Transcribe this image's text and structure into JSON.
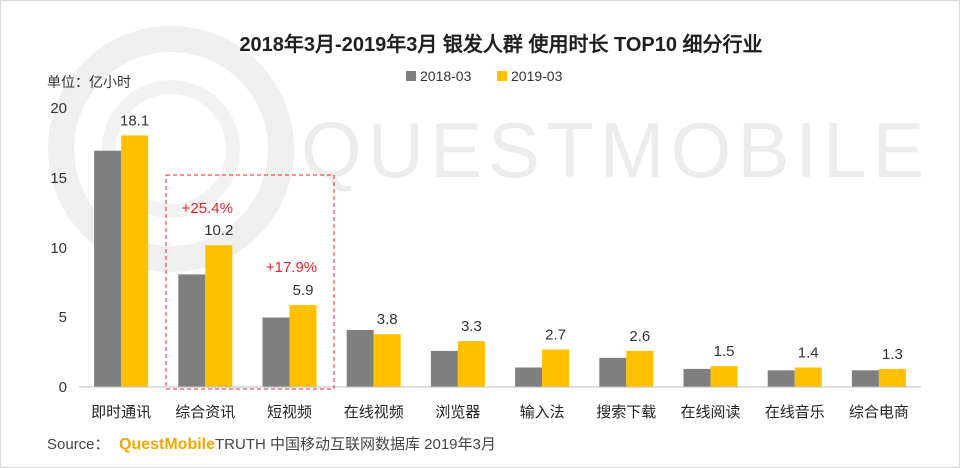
{
  "colors": {
    "series_2018": "#7f7f7f",
    "series_2019": "#ffc000",
    "highlight_box": "#e0262f",
    "growth_text": "#e0262f",
    "axis": "#bfbfbf",
    "brand": "#f2a900",
    "watermark": "#ececec"
  },
  "watermark": "QUESTMOBILE",
  "source": {
    "prefix": "Source：",
    "brand": "QuestMobile",
    "rest": "TRUTH 中国移动互联网数据库 2019年3月"
  },
  "chart_data": {
    "type": "bar",
    "title": "2018年3月-2019年3月 银发人群 使用时长 TOP10 细分行业",
    "unit_label": "单位：亿小时",
    "xlabel": "",
    "ylabel": "",
    "ylim": [
      0,
      20
    ],
    "yticks": [
      "0",
      "5",
      "10",
      "15",
      "20"
    ],
    "grid": false,
    "legend_position": "top-center",
    "categories": [
      "即时通讯",
      "综合资讯",
      "短视频",
      "在线视频",
      "浏览器",
      "输入法",
      "搜索下载",
      "在线阅读",
      "在线音乐",
      "综合电商"
    ],
    "series": [
      {
        "name": "2018-03",
        "values": [
          17.0,
          8.1,
          5.0,
          4.1,
          2.6,
          1.4,
          2.1,
          1.3,
          1.2,
          1.2
        ]
      },
      {
        "name": "2019-03",
        "values": [
          18.1,
          10.2,
          5.9,
          3.8,
          3.3,
          2.7,
          2.6,
          1.5,
          1.4,
          1.3
        ]
      }
    ],
    "value_labels": [
      "18.1",
      "10.2",
      "5.9",
      "3.8",
      "3.3",
      "2.7",
      "2.6",
      "1.5",
      "1.4",
      "1.3"
    ],
    "annotations": [
      {
        "category": "综合资讯",
        "text": "+25.4%"
      },
      {
        "category": "短视频",
        "text": "+17.9%"
      }
    ]
  }
}
